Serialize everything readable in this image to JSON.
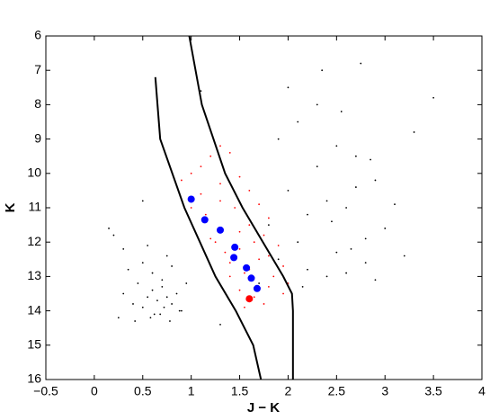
{
  "chart_data": {
    "type": "scatter",
    "x_label": "J − K",
    "y_label": "K",
    "xlim": [
      -0.5,
      4
    ],
    "ylim": [
      6,
      16
    ],
    "y_inverted": true,
    "xticks": [
      {
        "value": -0.5,
        "label": "−0.5"
      },
      0,
      0.5,
      1,
      1.5,
      2,
      2.5,
      3,
      3.5,
      4
    ],
    "yticks": [
      6,
      7,
      8,
      9,
      10,
      11,
      12,
      13,
      14,
      15,
      16
    ],
    "series": [
      {
        "color": "#000000",
        "size": 0.9,
        "x": [
          0.3,
          0.4,
          0.45,
          0.5,
          0.55,
          0.6,
          0.62,
          0.65,
          0.7,
          0.72,
          0.75,
          0.8,
          0.85,
          0.9,
          0.35,
          0.5,
          0.6,
          0.7,
          0.8,
          0.95,
          0.25,
          0.42,
          0.58,
          0.68,
          0.78,
          0.88,
          0.3,
          0.55,
          0.75,
          0.2,
          1.8,
          1.9,
          2.0,
          2.1,
          2.2,
          2.3,
          2.4,
          2.5,
          2.6,
          2.7,
          2.8,
          2.9,
          3.0,
          1.9,
          2.1,
          2.3,
          2.5,
          2.7,
          2.2,
          2.4,
          2.6,
          2.8,
          3.1,
          3.3,
          2.0,
          2.35,
          2.55,
          2.75,
          2.45,
          2.65,
          2.85,
          3.2,
          3.5,
          1.7,
          2.15,
          2.9,
          0.15,
          1.3,
          0.5,
          1.1
        ],
        "y": [
          13.5,
          13.8,
          13.2,
          13.9,
          13.6,
          13.4,
          14.1,
          13.7,
          13.3,
          13.9,
          13.6,
          13.8,
          13.5,
          14.0,
          12.8,
          12.6,
          12.9,
          13.1,
          12.7,
          13.2,
          14.2,
          14.3,
          14.2,
          14.1,
          14.3,
          14.0,
          12.2,
          12.1,
          12.4,
          11.8,
          11.5,
          12.5,
          10.5,
          12.0,
          11.2,
          9.8,
          10.8,
          12.3,
          11.0,
          9.5,
          12.6,
          10.2,
          11.6,
          9.0,
          8.5,
          8.0,
          9.2,
          10.4,
          12.8,
          13.0,
          12.9,
          11.9,
          10.9,
          8.8,
          7.5,
          7.0,
          8.2,
          6.8,
          11.4,
          12.2,
          9.6,
          12.4,
          7.8,
          13.2,
          13.3,
          13.1,
          11.6,
          14.4,
          10.8,
          7.6
        ]
      },
      {
        "color": "#ff0000",
        "size": 0.9,
        "x": [
          0.9,
          1.0,
          1.1,
          1.2,
          1.3,
          1.4,
          1.5,
          1.6,
          1.7,
          1.8,
          1.0,
          1.15,
          1.3,
          1.45,
          1.6,
          1.75,
          1.9,
          1.2,
          1.35,
          1.5,
          1.65,
          1.8,
          1.95,
          1.4,
          1.55,
          1.7,
          1.85,
          2.0,
          1.5,
          1.65,
          1.8,
          1.95,
          1.25,
          1.4,
          1.55,
          1.1,
          1.3,
          1.5,
          1.6,
          1.75
        ],
        "y": [
          10.2,
          10.0,
          9.8,
          9.5,
          9.2,
          9.4,
          10.1,
          10.5,
          10.9,
          11.3,
          11.0,
          11.2,
          10.8,
          11.0,
          11.5,
          11.8,
          12.1,
          11.9,
          12.3,
          11.7,
          12.0,
          12.4,
          12.7,
          12.6,
          12.9,
          12.5,
          13.0,
          13.2,
          13.4,
          13.6,
          13.3,
          13.5,
          12.0,
          13.0,
          13.9,
          10.6,
          10.3,
          12.2,
          12.8,
          13.8
        ]
      },
      {
        "color": "#0000ff",
        "size": 4,
        "x": [
          1.0,
          1.14,
          1.3,
          1.45,
          1.44,
          1.57,
          1.62,
          1.68
        ],
        "y": [
          10.75,
          11.35,
          11.65,
          12.15,
          12.45,
          12.75,
          13.05,
          13.35
        ]
      },
      {
        "color": "#ff0000",
        "size": 4,
        "x": [
          1.6
        ],
        "y": [
          13.65
        ]
      }
    ],
    "lines": [
      {
        "color": "#000000",
        "x": [
          0.63,
          0.68,
          0.93,
          1.09,
          1.25,
          1.46,
          1.64,
          1.72
        ],
        "y": [
          7.2,
          9,
          11,
          12,
          13,
          14,
          15,
          16
        ]
      },
      {
        "color": "#000000",
        "x": [
          0.98,
          1.11,
          1.35,
          1.53,
          1.74,
          1.95,
          2.04,
          2.05,
          2.05
        ],
        "y": [
          6,
          8,
          10,
          11,
          12,
          13,
          13.5,
          14,
          16
        ]
      }
    ]
  }
}
